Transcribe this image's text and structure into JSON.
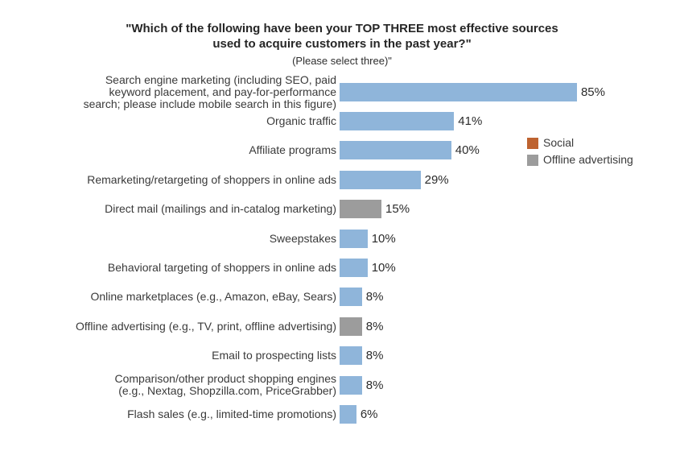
{
  "header": {
    "title_line1": "\"Which of the following have been your TOP THREE most effective sources",
    "title_line2": "used to acquire customers in the past year?\"",
    "subtitle": "(Please select three)\""
  },
  "chart_data": {
    "type": "bar",
    "orientation": "horizontal",
    "title": "\"Which of the following have been your TOP THREE most effective sources used to acquire customers in the past year?\" (Please select three)\"",
    "value_suffix": "%",
    "xlim": [
      0,
      100
    ],
    "grid": false,
    "legend_position": "right",
    "colors": {
      "blue": "#8FB5DA",
      "gray": "#9C9C9C",
      "orange": "#BE6330"
    },
    "legend": [
      {
        "label": "Social",
        "color": "orange"
      },
      {
        "label": "Offline advertising",
        "color": "gray"
      }
    ],
    "rows": [
      {
        "label": "Search engine marketing (including SEO, paid\nkeyword placement, and pay-for-performance\nsearch; please include mobile search in this figure)",
        "value": 85,
        "color": "blue"
      },
      {
        "label": "Organic traffic",
        "value": 41,
        "color": "blue"
      },
      {
        "label": "Affiliate programs",
        "value": 40,
        "color": "blue"
      },
      {
        "label": "Remarketing/retargeting of shoppers in online ads",
        "value": 29,
        "color": "blue"
      },
      {
        "label": "Direct mail (mailings and in-catalog marketing)",
        "value": 15,
        "color": "gray"
      },
      {
        "label": "Sweepstakes",
        "value": 10,
        "color": "blue"
      },
      {
        "label": "Behavioral targeting of shoppers in online ads",
        "value": 10,
        "color": "blue"
      },
      {
        "label": "Online marketplaces (e.g., Amazon, eBay, Sears)",
        "value": 8,
        "color": "blue"
      },
      {
        "label": "Offline advertising (e.g., TV, print, offline advertising)",
        "value": 8,
        "color": "gray"
      },
      {
        "label": "Email to prospecting lists",
        "value": 8,
        "color": "blue"
      },
      {
        "label": "Comparison/other product shopping engines\n(e.g., Nextag, Shopzilla.com, PriceGrabber)",
        "value": 8,
        "color": "blue"
      },
      {
        "label": "Flash sales (e.g., limited-time promotions)",
        "value": 6,
        "color": "blue"
      }
    ]
  }
}
